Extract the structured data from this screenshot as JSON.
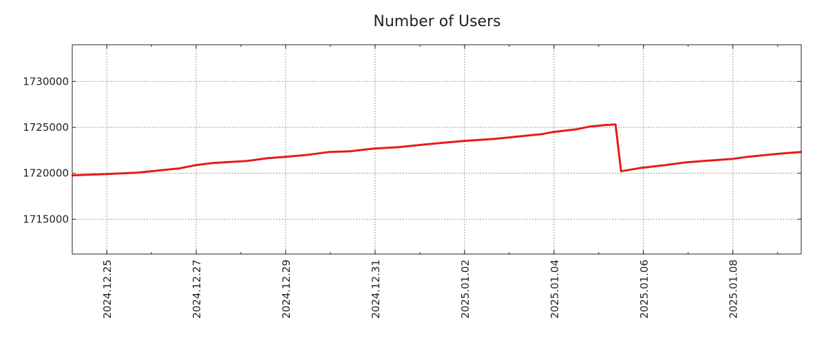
{
  "chart_data": {
    "type": "line",
    "title": "Number of Users",
    "xlabel": "",
    "ylabel": "",
    "xlim": [
      "2024-12-24T05:30",
      "2025-01-09T12:40"
    ],
    "ylim": [
      1711200,
      1734000
    ],
    "grid": true,
    "legend": "none",
    "y_ticks": [
      1715000,
      1720000,
      1725000,
      1730000
    ],
    "y_tick_labels": [
      "1715000",
      "1720000",
      "1725000",
      "1730000"
    ],
    "x_ticks": [
      "2024-12-25",
      "2024-12-27",
      "2024-12-29",
      "2024-12-31",
      "2025-01-02",
      "2025-01-04",
      "2025-01-06",
      "2025-01-08"
    ],
    "x_tick_labels": [
      "2024.12.25",
      "2024.12.27",
      "2024.12.29",
      "2024.12.31",
      "2025.01.02",
      "2025.01.04",
      "2025.01.06",
      "2025.01.08"
    ],
    "series": [
      {
        "name": "Number of Users",
        "color": "#e8191a",
        "x": [
          "2024-12-24T05:30",
          "2024-12-25T00:00",
          "2024-12-25T16:30",
          "2024-12-26T03:30",
          "2024-12-26T14:40",
          "2024-12-27T00:00",
          "2024-12-27T09:00",
          "2024-12-28T03:30",
          "2024-12-28T14:30",
          "2024-12-29T00:00",
          "2024-12-29T12:30",
          "2024-12-29T23:30",
          "2024-12-30T10:30",
          "2024-12-30T23:30",
          "2024-12-31T12:30",
          "2025-01-01T03:00",
          "2025-01-01T23:30",
          "2025-01-02T16:00",
          "2025-01-03T06:45",
          "2025-01-03T17:45",
          "2025-01-03T23:30",
          "2025-01-04T12:10",
          "2025-01-04T19:30",
          "2025-01-05T03:00",
          "2025-01-05T09:00",
          "2025-01-05T12:00",
          "2025-01-05T23:00",
          "2025-01-06T12:00",
          "2025-01-06T23:00",
          "2025-01-07T13:45",
          "2025-01-08T00:00",
          "2025-01-08T08:10",
          "2025-01-08T22:50",
          "2025-01-09T12:40"
        ],
        "y": [
          1719775,
          1719925,
          1720075,
          1720300,
          1720525,
          1720900,
          1721125,
          1721350,
          1721650,
          1721800,
          1722025,
          1722325,
          1722400,
          1722700,
          1722850,
          1723150,
          1723525,
          1723750,
          1724050,
          1724275,
          1724500,
          1724800,
          1725100,
          1725250,
          1725325,
          1720225,
          1720600,
          1720900,
          1721200,
          1721425,
          1721575,
          1721800,
          1722100,
          1722325
        ]
      }
    ]
  }
}
